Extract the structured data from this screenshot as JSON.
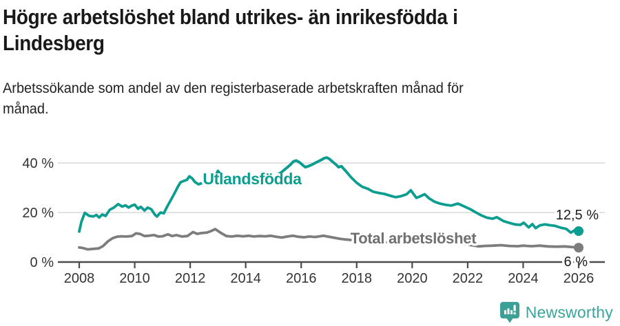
{
  "header": {
    "title_line1": "Högre arbetslöshet bland utrikes- än inrikesfödda i",
    "title_line2": "Lindesberg",
    "subtitle_line1": "Arbetssökande som andel av den registerbaserade arbetskraften månad för",
    "subtitle_line2": "månad."
  },
  "footer": {
    "brand": "Newsworthy",
    "brand_color": "#36a69b",
    "logo_icon": "newsworthy-speech-bubble-bar-chart-icon"
  },
  "colors": {
    "series_foreign_born": "#0b9e90",
    "series_total": "#7d7d7d",
    "grid": "#d9d9d9",
    "axis": "#4b4b4b",
    "tick_text": "#333333",
    "annotation_text": "#1a1a1a"
  },
  "chart_data": {
    "type": "line",
    "title": "Högre arbetslöshet bland utrikes- än inrikesfödda i Lindesberg",
    "subtitle": "Arbetssökande som andel av den registerbaserade arbetskraften månad för månad.",
    "unit": "%",
    "grid": true,
    "legend_position": "inline-labels",
    "x_axis": {
      "min": 2007.25,
      "max": 2026.95,
      "ticks": [
        2008,
        2010,
        2012,
        2014,
        2016,
        2018,
        2020,
        2022,
        2024,
        2026
      ]
    },
    "y_axis": {
      "min": 0,
      "max": 44,
      "ticks": [
        {
          "value": 0,
          "label": "0 %"
        },
        {
          "value": 20,
          "label": "20 %"
        },
        {
          "value": 40,
          "label": "40 %"
        }
      ]
    },
    "series": [
      {
        "name": "Utlandsfödda",
        "color": "#0b9e90",
        "end_label": "12,5 %",
        "end_value": 12.5,
        "points": [
          [
            2008.0,
            12.3
          ],
          [
            2008.08,
            16.3
          ],
          [
            2008.2,
            19.9
          ],
          [
            2008.35,
            18.7
          ],
          [
            2008.5,
            18.4
          ],
          [
            2008.62,
            19.0
          ],
          [
            2008.72,
            18.0
          ],
          [
            2008.83,
            19.2
          ],
          [
            2008.95,
            18.6
          ],
          [
            2009.1,
            21.1
          ],
          [
            2009.25,
            22.0
          ],
          [
            2009.4,
            23.4
          ],
          [
            2009.55,
            22.4
          ],
          [
            2009.67,
            22.9
          ],
          [
            2009.78,
            22.0
          ],
          [
            2009.88,
            22.7
          ],
          [
            2010.0,
            23.2
          ],
          [
            2010.12,
            21.5
          ],
          [
            2010.22,
            22.3
          ],
          [
            2010.35,
            20.8
          ],
          [
            2010.47,
            22.0
          ],
          [
            2010.6,
            21.3
          ],
          [
            2010.72,
            19.2
          ],
          [
            2010.8,
            18.4
          ],
          [
            2010.93,
            20.0
          ],
          [
            2011.05,
            19.7
          ],
          [
            2011.15,
            22.0
          ],
          [
            2011.3,
            25.0
          ],
          [
            2011.42,
            27.5
          ],
          [
            2011.55,
            30.3
          ],
          [
            2011.65,
            32.2
          ],
          [
            2011.78,
            32.8
          ],
          [
            2011.88,
            33.2
          ],
          [
            2011.97,
            34.6
          ],
          [
            2012.07,
            33.8
          ],
          [
            2012.17,
            32.3
          ],
          [
            2012.3,
            31.4
          ],
          [
            2012.45,
            32.0
          ],
          [
            2012.57,
            32.5
          ],
          [
            2012.7,
            31.9
          ],
          [
            2012.85,
            33.6
          ],
          [
            2013.0,
            36.8
          ],
          [
            2013.15,
            34.6
          ],
          [
            2013.3,
            32.6
          ],
          [
            2013.45,
            31.2
          ],
          [
            2013.6,
            31.8
          ],
          [
            2013.75,
            32.3
          ],
          [
            2013.9,
            32.0
          ],
          [
            2014.05,
            32.6
          ],
          [
            2014.2,
            33.0
          ],
          [
            2014.35,
            32.4
          ],
          [
            2014.5,
            33.2
          ],
          [
            2014.65,
            33.6
          ],
          [
            2014.8,
            33.2
          ],
          [
            2015.0,
            34.2
          ],
          [
            2015.15,
            35.2
          ],
          [
            2015.3,
            36.4
          ],
          [
            2015.45,
            37.8
          ],
          [
            2015.6,
            39.2
          ],
          [
            2015.72,
            40.6
          ],
          [
            2015.82,
            41.0
          ],
          [
            2015.95,
            40.2
          ],
          [
            2016.05,
            39.2
          ],
          [
            2016.15,
            38.3
          ],
          [
            2016.28,
            38.8
          ],
          [
            2016.4,
            39.4
          ],
          [
            2016.55,
            40.3
          ],
          [
            2016.7,
            41.1
          ],
          [
            2016.82,
            41.9
          ],
          [
            2016.92,
            42.2
          ],
          [
            2017.02,
            41.6
          ],
          [
            2017.12,
            40.6
          ],
          [
            2017.25,
            39.4
          ],
          [
            2017.35,
            38.3
          ],
          [
            2017.45,
            38.7
          ],
          [
            2017.6,
            36.8
          ],
          [
            2017.8,
            34.2
          ],
          [
            2018.0,
            32.0
          ],
          [
            2018.2,
            30.4
          ],
          [
            2018.4,
            29.6
          ],
          [
            2018.6,
            28.4
          ],
          [
            2018.8,
            27.9
          ],
          [
            2019.0,
            27.5
          ],
          [
            2019.2,
            26.8
          ],
          [
            2019.4,
            26.2
          ],
          [
            2019.6,
            26.6
          ],
          [
            2019.8,
            27.4
          ],
          [
            2019.95,
            29.0
          ],
          [
            2020.15,
            25.9
          ],
          [
            2020.3,
            26.6
          ],
          [
            2020.45,
            27.4
          ],
          [
            2020.6,
            25.8
          ],
          [
            2020.8,
            24.4
          ],
          [
            2021.0,
            23.6
          ],
          [
            2021.2,
            23.1
          ],
          [
            2021.4,
            22.8
          ],
          [
            2021.65,
            23.6
          ],
          [
            2021.85,
            22.6
          ],
          [
            2022.1,
            21.3
          ],
          [
            2022.3,
            20.0
          ],
          [
            2022.5,
            18.8
          ],
          [
            2022.7,
            17.9
          ],
          [
            2022.9,
            17.5
          ],
          [
            2023.05,
            18.1
          ],
          [
            2023.3,
            16.5
          ],
          [
            2023.5,
            15.8
          ],
          [
            2023.7,
            15.2
          ],
          [
            2023.9,
            15.0
          ],
          [
            2024.02,
            15.9
          ],
          [
            2024.2,
            14.0
          ],
          [
            2024.33,
            15.3
          ],
          [
            2024.45,
            13.7
          ],
          [
            2024.6,
            14.8
          ],
          [
            2024.78,
            15.2
          ],
          [
            2024.95,
            14.9
          ],
          [
            2025.15,
            14.6
          ],
          [
            2025.35,
            13.9
          ],
          [
            2025.55,
            13.4
          ],
          [
            2025.72,
            11.9
          ],
          [
            2025.85,
            12.8
          ],
          [
            2026.0,
            12.5
          ]
        ]
      },
      {
        "name": "Total arbetslöshet",
        "color": "#7d7d7d",
        "end_label": "6 %",
        "end_value": 6,
        "points": [
          [
            2008.0,
            5.9
          ],
          [
            2008.15,
            5.6
          ],
          [
            2008.3,
            5.1
          ],
          [
            2008.5,
            5.3
          ],
          [
            2008.7,
            5.5
          ],
          [
            2008.85,
            6.4
          ],
          [
            2009.05,
            8.5
          ],
          [
            2009.2,
            9.6
          ],
          [
            2009.35,
            10.2
          ],
          [
            2009.5,
            10.4
          ],
          [
            2009.7,
            10.3
          ],
          [
            2009.9,
            10.5
          ],
          [
            2010.05,
            11.6
          ],
          [
            2010.2,
            11.3
          ],
          [
            2010.35,
            10.5
          ],
          [
            2010.5,
            10.6
          ],
          [
            2010.7,
            10.9
          ],
          [
            2010.85,
            10.3
          ],
          [
            2011.0,
            10.4
          ],
          [
            2011.2,
            11.2
          ],
          [
            2011.35,
            10.5
          ],
          [
            2011.5,
            10.9
          ],
          [
            2011.7,
            10.3
          ],
          [
            2011.9,
            10.5
          ],
          [
            2012.1,
            12.1
          ],
          [
            2012.25,
            11.4
          ],
          [
            2012.4,
            11.7
          ],
          [
            2012.6,
            11.9
          ],
          [
            2012.75,
            12.5
          ],
          [
            2012.9,
            13.3
          ],
          [
            2013.1,
            11.8
          ],
          [
            2013.3,
            10.5
          ],
          [
            2013.5,
            10.3
          ],
          [
            2013.7,
            10.6
          ],
          [
            2013.9,
            10.4
          ],
          [
            2014.1,
            10.6
          ],
          [
            2014.3,
            10.3
          ],
          [
            2014.5,
            10.5
          ],
          [
            2014.7,
            10.4
          ],
          [
            2014.9,
            10.6
          ],
          [
            2015.1,
            10.2
          ],
          [
            2015.3,
            9.9
          ],
          [
            2015.5,
            10.3
          ],
          [
            2015.7,
            10.6
          ],
          [
            2015.9,
            10.2
          ],
          [
            2016.1,
            10.0
          ],
          [
            2016.3,
            10.3
          ],
          [
            2016.5,
            10.1
          ],
          [
            2016.8,
            10.6
          ],
          [
            2017.0,
            10.2
          ],
          [
            2017.2,
            9.8
          ],
          [
            2017.4,
            9.4
          ],
          [
            2017.6,
            9.1
          ],
          [
            2017.9,
            8.8
          ],
          [
            2018.2,
            8.5
          ],
          [
            2018.5,
            8.3
          ],
          [
            2018.8,
            8.2
          ],
          [
            2019.1,
            8.0
          ],
          [
            2019.4,
            7.9
          ],
          [
            2019.7,
            8.0
          ],
          [
            2020.0,
            8.6
          ],
          [
            2020.3,
            9.4
          ],
          [
            2020.6,
            9.2
          ],
          [
            2020.9,
            8.8
          ],
          [
            2021.2,
            8.4
          ],
          [
            2021.5,
            7.9
          ],
          [
            2021.8,
            7.4
          ],
          [
            2022.1,
            6.9
          ],
          [
            2022.4,
            6.3
          ],
          [
            2022.6,
            6.5
          ],
          [
            2022.9,
            6.6
          ],
          [
            2023.2,
            6.8
          ],
          [
            2023.5,
            6.5
          ],
          [
            2023.8,
            6.4
          ],
          [
            2024.0,
            6.6
          ],
          [
            2024.3,
            6.4
          ],
          [
            2024.6,
            6.6
          ],
          [
            2024.9,
            6.3
          ],
          [
            2025.2,
            6.2
          ],
          [
            2025.5,
            6.3
          ],
          [
            2025.8,
            6.0
          ],
          [
            2026.0,
            5.8
          ]
        ]
      }
    ]
  }
}
